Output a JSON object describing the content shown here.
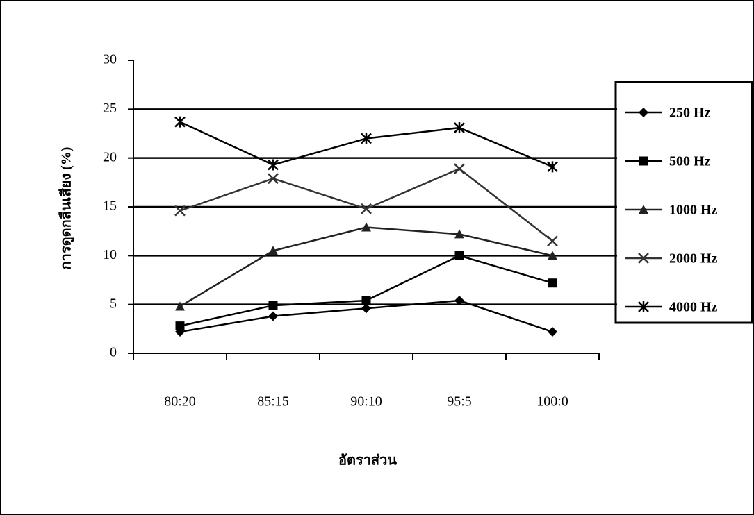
{
  "chart_data": {
    "type": "line",
    "x_label": "อัตราส่วน",
    "y_label": "การดูดกลืนเสียง (%)",
    "categories": [
      "80:20",
      "85:15",
      "90:10",
      "95:5",
      "100:0"
    ],
    "series": [
      {
        "name": "250 Hz",
        "color": "#000000",
        "marker": "diamond",
        "values": [
          2.2,
          3.8,
          4.6,
          5.4,
          2.2
        ]
      },
      {
        "name": "500 Hz",
        "color": "#000000",
        "marker": "square",
        "values": [
          2.8,
          4.9,
          5.4,
          10.0,
          7.2
        ]
      },
      {
        "name": "1000 Hz",
        "color": "#222222",
        "marker": "triangle",
        "values": [
          4.8,
          10.5,
          12.9,
          12.2,
          10.0
        ]
      },
      {
        "name": "2000 Hz",
        "color": "#333333",
        "marker": "x",
        "values": [
          14.6,
          17.9,
          14.8,
          18.9,
          11.5
        ]
      },
      {
        "name": "4000 Hz",
        "color": "#000000",
        "marker": "star",
        "values": [
          23.7,
          19.3,
          22.0,
          23.1,
          19.1
        ]
      }
    ],
    "ylim": [
      0,
      30
    ],
    "yticks": [
      0,
      5,
      10,
      15,
      20,
      25,
      30
    ],
    "grid": true,
    "legend": "right"
  }
}
